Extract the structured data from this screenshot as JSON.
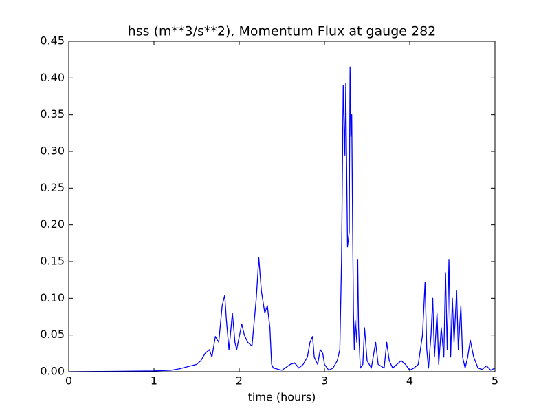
{
  "chart_data": {
    "type": "line",
    "title": "hss (m**3/s**2), Momentum Flux at gauge 282",
    "x_label": "time (hours)",
    "x": [
      0,
      0.5,
      1.0,
      1.2,
      1.3,
      1.4,
      1.5,
      1.55,
      1.6,
      1.65,
      1.68,
      1.72,
      1.76,
      1.8,
      1.83,
      1.85,
      1.88,
      1.92,
      1.95,
      1.97,
      2.03,
      2.06,
      2.1,
      2.15,
      2.2,
      2.23,
      2.26,
      2.3,
      2.33,
      2.36,
      2.38,
      2.4,
      2.5,
      2.6,
      2.65,
      2.7,
      2.75,
      2.8,
      2.83,
      2.86,
      2.88,
      2.92,
      2.95,
      2.98,
      3.0,
      3.05,
      3.1,
      3.15,
      3.18,
      3.2,
      3.22,
      3.24,
      3.25,
      3.27,
      3.29,
      3.3,
      3.31,
      3.32,
      3.33,
      3.34,
      3.35,
      3.36,
      3.38,
      3.39,
      3.4,
      3.42,
      3.45,
      3.47,
      3.5,
      3.55,
      3.6,
      3.63,
      3.7,
      3.73,
      3.76,
      3.8,
      3.9,
      3.95,
      4.0,
      4.05,
      4.1,
      4.15,
      4.18,
      4.2,
      4.22,
      4.25,
      4.27,
      4.29,
      4.32,
      4.34,
      4.37,
      4.4,
      4.42,
      4.44,
      4.46,
      4.48,
      4.5,
      4.52,
      4.55,
      4.57,
      4.6,
      4.62,
      4.65,
      4.68,
      4.71,
      4.75,
      4.8,
      4.85,
      4.9,
      4.95,
      5.0
    ],
    "series": [
      {
        "color": "#0000ff",
        "values": [
          0,
          0.0005,
          0.001,
          0.002,
          0.004,
          0.007,
          0.01,
          0.015,
          0.025,
          0.03,
          0.02,
          0.048,
          0.04,
          0.09,
          0.104,
          0.07,
          0.03,
          0.08,
          0.04,
          0.03,
          0.065,
          0.05,
          0.04,
          0.035,
          0.1,
          0.155,
          0.11,
          0.08,
          0.09,
          0.06,
          0.01,
          0.005,
          0.002,
          0.01,
          0.012,
          0.005,
          0.01,
          0.02,
          0.04,
          0.048,
          0.02,
          0.01,
          0.03,
          0.025,
          0.01,
          0.002,
          0.005,
          0.015,
          0.03,
          0.15,
          0.39,
          0.295,
          0.393,
          0.17,
          0.19,
          0.415,
          0.32,
          0.35,
          0.2,
          0.08,
          0.03,
          0.07,
          0.04,
          0.153,
          0.06,
          0.005,
          0.01,
          0.06,
          0.015,
          0.005,
          0.04,
          0.01,
          0.005,
          0.04,
          0.015,
          0.005,
          0.015,
          0.01,
          0.002,
          0.005,
          0.01,
          0.05,
          0.122,
          0.03,
          0.005,
          0.05,
          0.1,
          0.02,
          0.08,
          0.01,
          0.06,
          0.02,
          0.135,
          0.03,
          0.153,
          0.02,
          0.1,
          0.04,
          0.11,
          0.03,
          0.09,
          0.02,
          0.005,
          0.02,
          0.043,
          0.02,
          0.005,
          0.003,
          0.008,
          0.002,
          0.005
        ]
      }
    ],
    "reference_line": {
      "y": 0,
      "color": "#000000",
      "dashed": true
    },
    "xlim": [
      0,
      5
    ],
    "xticks": [
      0,
      1,
      2,
      3,
      4,
      5
    ],
    "ylim": [
      0,
      0.45
    ],
    "yticks": [
      {
        "value": 0,
        "label": "0.00"
      },
      {
        "value": 0.05,
        "label": "0.05"
      },
      {
        "value": 0.1,
        "label": "0.10"
      },
      {
        "value": 0.15,
        "label": "0.15"
      },
      {
        "value": 0.2,
        "label": "0.20"
      },
      {
        "value": 0.25,
        "label": "0.25"
      },
      {
        "value": 0.3,
        "label": "0.30"
      },
      {
        "value": 0.35,
        "label": "0.35"
      },
      {
        "value": 0.4,
        "label": "0.40"
      },
      {
        "value": 0.45,
        "label": "0.45"
      }
    ]
  }
}
